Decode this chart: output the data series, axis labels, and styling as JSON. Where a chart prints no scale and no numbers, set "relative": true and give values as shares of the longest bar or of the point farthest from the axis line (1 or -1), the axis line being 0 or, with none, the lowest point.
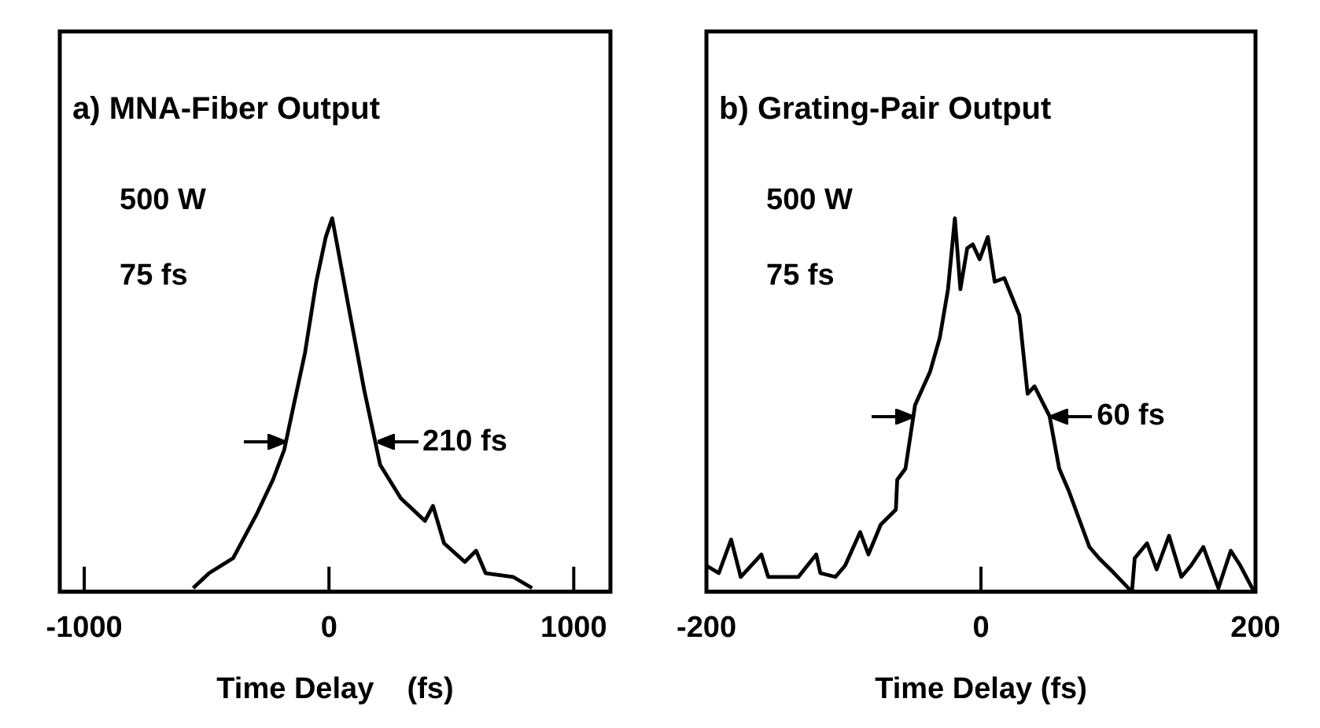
{
  "chart_data": [
    {
      "type": "line",
      "title": "a) MNA-Fiber Output",
      "xlabel": "Time Delay    (fs)",
      "relative": true,
      "xlim": [
        -1100,
        1150
      ],
      "xticks": [
        -1000,
        0,
        1000
      ],
      "grid": false,
      "legend": false,
      "marker": "none",
      "line_style": "solid",
      "annotations": [
        "500 W",
        "75 fs",
        {
          "text": "210 fs",
          "x": 189,
          "y": 0.4
        }
      ],
      "series": [
        {
          "color": "#000000",
          "x": [
            -555,
            -490,
            -392,
            -294,
            -229,
            -183,
            -144,
            -98,
            -52,
            -13,
            13,
            33,
            78,
            144,
            209,
            294,
            392,
            425,
            470,
            555,
            601,
            640,
            752,
            830
          ],
          "values": [
            0.01,
            0.05,
            0.09,
            0.21,
            0.3,
            0.38,
            0.5,
            0.64,
            0.83,
            0.95,
            1,
            0.93,
            0.77,
            0.54,
            0.34,
            0.25,
            0.19,
            0.23,
            0.13,
            0.08,
            0.11,
            0.05,
            0.04,
            0.01
          ]
        }
      ]
    },
    {
      "type": "line",
      "title": "b) Grating-Pair Output",
      "xlabel": "Time Delay (fs)",
      "relative": true,
      "xlim": [
        -200,
        200
      ],
      "xticks": [
        -200,
        0,
        200
      ],
      "grid": false,
      "legend": false,
      "marker": "none",
      "line_style": "solid",
      "annotations": [
        "500 W",
        "75 fs",
        {
          "text": "60 fs",
          "x": 50,
          "y": 0.47
        }
      ],
      "series": [
        {
          "color": "#000000",
          "x": [
            -200,
            -191,
            -182,
            -175,
            -160,
            -155,
            -133,
            -120,
            -117,
            -106,
            -99,
            -88,
            -82,
            -73,
            -62,
            -61,
            -55,
            -48,
            -37,
            -30,
            -24,
            -19,
            -15,
            -10,
            -6,
            -1,
            5,
            10,
            17,
            28,
            34,
            39,
            50,
            57,
            64,
            72,
            79,
            86,
            97,
            110,
            112,
            121,
            128,
            137,
            146,
            153,
            162,
            173,
            182,
            189,
            199
          ],
          "values": [
            0.07,
            0.05,
            0.14,
            0.04,
            0.1,
            0.04,
            0.04,
            0.1,
            0.05,
            0.04,
            0.07,
            0.16,
            0.1,
            0.18,
            0.22,
            0.3,
            0.33,
            0.5,
            0.59,
            0.68,
            0.81,
            1,
            0.81,
            0.92,
            0.93,
            0.89,
            0.95,
            0.83,
            0.84,
            0.74,
            0.53,
            0.55,
            0.47,
            0.33,
            0.27,
            0.19,
            0.12,
            0.09,
            0.05,
            0,
            0.09,
            0.13,
            0.06,
            0.15,
            0.04,
            0.07,
            0.12,
            0.01,
            0.11,
            0.07,
            0
          ]
        }
      ]
    }
  ]
}
